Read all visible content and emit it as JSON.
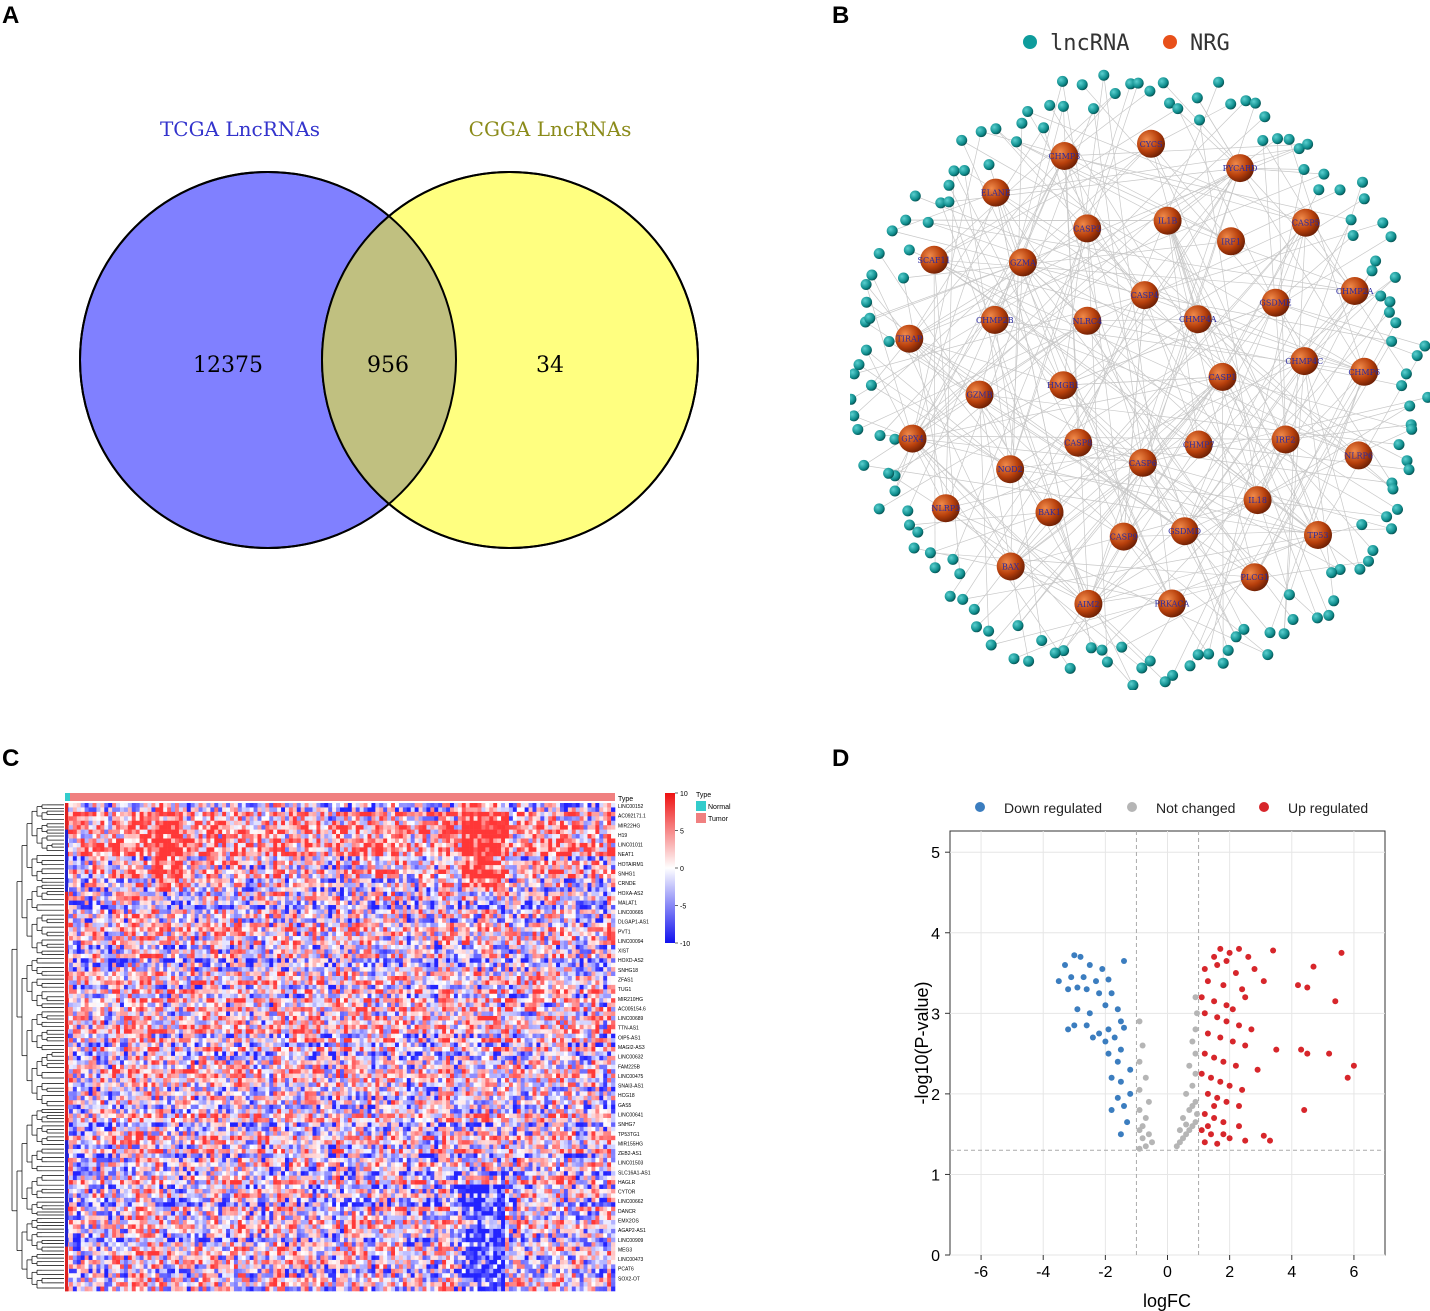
{
  "panels": {
    "a": "A",
    "b": "B",
    "c": "C",
    "d": "D"
  },
  "colors": {
    "tcga": "#8080ff",
    "cgga": "#ffff80",
    "overlap": "#c0c080",
    "lnc": "#0e9c9c",
    "nrg": "#c84c12",
    "down": "#3b7dbf",
    "notchanged": "#b5b5b5",
    "up": "#d7262b",
    "heat_low": "#2222dd",
    "heat_high": "#dd2222",
    "normal": "#33cccc",
    "tumor": "#f08080"
  },
  "chart_data": [
    {
      "type": "venn",
      "sets": [
        {
          "label": "TCGA LncRNAs",
          "only": "12375"
        },
        {
          "label": "CGGA LncRNAs",
          "only": "34"
        }
      ],
      "intersection": "956"
    },
    {
      "type": "network",
      "legend": [
        "lncRNA",
        "NRG"
      ],
      "nrg_nodes": [
        "CASP1",
        "CHMP7",
        "CASP6",
        "CASP8",
        "HMGB1",
        "NLRC4",
        "CASP4",
        "CHMP4A",
        "IRF2",
        "IL18",
        "GSDMD",
        "CASP9",
        "BAK1",
        "NOD2",
        "GZMB",
        "CHMP2B",
        "GZMA",
        "CASP3",
        "IL1B",
        "IRF1",
        "GSDME",
        "CHMP4C",
        "TP53",
        "PLCG1",
        "PRKACA",
        "AIM2",
        "BAX",
        "NLRP3",
        "GPX4",
        "TIRAP",
        "SCAF11",
        "ELANE",
        "CHMP3",
        "CYCS",
        "PYCARD",
        "CASP5",
        "CHMP2A",
        "CHMP6",
        "NLRP6"
      ]
    },
    {
      "type": "heatmap",
      "scale": {
        "ticks": [
          "10",
          "5",
          "0",
          "-5",
          "-10"
        ]
      },
      "legend_title": "Type",
      "legend_items": [
        "Normal",
        "Tumor"
      ],
      "column_annotation": "Type",
      "row_labels": [
        "LINC00152",
        "AC092171.1",
        "MIR22HG",
        "H19",
        "LINC01011",
        "NEAT1",
        "HOTAIRM1",
        "SNHG1",
        "CRNDE",
        "HOXA-AS2",
        "MALAT1",
        "LINC00665",
        "DLGAP1-AS1",
        "PVT1",
        "LINC00094",
        "XIST",
        "HOXD-AS2",
        "SNHG18",
        "ZFAS1",
        "TUG1",
        "MIR210HG",
        "AC005154.6",
        "LINC00689",
        "TTN-AS1",
        "OIP5-AS1",
        "MAGI2-AS3",
        "LINC00632",
        "FAM225B",
        "LINC00475",
        "SNAI3-AS1",
        "HCG18",
        "GAS5",
        "LINC00641",
        "SNHG7",
        "TP53TG1",
        "MIR155HG",
        "ZEB2-AS1",
        "LINC01503",
        "SLC16A1-AS1",
        "HAGLR",
        "CYTOR",
        "LINC00662",
        "DANCR",
        "EMX2OS",
        "AGAP2-AS1",
        "LINC00909",
        "MEG3",
        "LINC00473",
        "PCAT6",
        "SOX2-OT"
      ]
    },
    {
      "type": "scatter",
      "title": "",
      "xlabel": "logFC",
      "ylabel": "-log10(P-value)",
      "xlim": [
        -7,
        7
      ],
      "ylim": [
        0,
        5
      ],
      "xticks": [
        -6,
        -4,
        -2,
        0,
        2,
        4,
        6
      ],
      "yticks": [
        0,
        1,
        2,
        3,
        4,
        5
      ],
      "thresholds": {
        "logFC": [
          -1,
          1
        ],
        "p": 1.3
      },
      "legend": [
        "Down regulated",
        "Not changed",
        "Up regulated"
      ],
      "series": [
        {
          "name": "Down regulated",
          "points": [
            [
              -3.0,
              3.72
            ],
            [
              -2.8,
              3.7
            ],
            [
              -3.3,
              3.6
            ],
            [
              -2.5,
              3.6
            ],
            [
              -2.1,
              3.55
            ],
            [
              -3.5,
              3.4
            ],
            [
              -3.1,
              3.45
            ],
            [
              -2.7,
              3.45
            ],
            [
              -2.3,
              3.4
            ],
            [
              -1.9,
              3.42
            ],
            [
              -1.4,
              3.65
            ],
            [
              -3.2,
              3.3
            ],
            [
              -2.9,
              3.32
            ],
            [
              -2.6,
              3.3
            ],
            [
              -2.2,
              3.25
            ],
            [
              -1.8,
              3.25
            ],
            [
              -2.9,
              3.05
            ],
            [
              -2.5,
              3.0
            ],
            [
              -2.0,
              3.1
            ],
            [
              -1.6,
              3.05
            ],
            [
              -1.5,
              2.9
            ],
            [
              -1.4,
              2.82
            ],
            [
              -3.0,
              2.85
            ],
            [
              -2.6,
              2.85
            ],
            [
              -2.2,
              2.75
            ],
            [
              -1.9,
              2.8
            ],
            [
              -1.7,
              2.7
            ],
            [
              -3.2,
              2.8
            ],
            [
              -2.4,
              2.7
            ],
            [
              -2.0,
              2.65
            ],
            [
              -1.5,
              2.55
            ],
            [
              -1.9,
              2.5
            ],
            [
              -1.6,
              2.4
            ],
            [
              -1.2,
              2.3
            ],
            [
              -1.8,
              2.2
            ],
            [
              -1.5,
              2.15
            ],
            [
              -1.2,
              2.0
            ],
            [
              -1.6,
              1.95
            ],
            [
              -1.8,
              1.8
            ],
            [
              -1.4,
              1.85
            ],
            [
              -1.3,
              1.65
            ],
            [
              -1.5,
              1.5
            ]
          ]
        },
        {
          "name": "Not changed",
          "points": [
            [
              -0.9,
              2.9
            ],
            [
              -0.8,
              2.6
            ],
            [
              -0.9,
              2.4
            ],
            [
              -0.7,
              2.2
            ],
            [
              -0.9,
              2.05
            ],
            [
              -0.6,
              1.9
            ],
            [
              -0.9,
              1.8
            ],
            [
              -0.7,
              1.7
            ],
            [
              -0.8,
              1.6
            ],
            [
              -0.9,
              1.55
            ],
            [
              -0.6,
              1.5
            ],
            [
              -0.8,
              1.45
            ],
            [
              -0.5,
              1.4
            ],
            [
              -0.7,
              1.35
            ],
            [
              -0.9,
              1.32
            ],
            [
              0.3,
              1.35
            ],
            [
              0.4,
              1.4
            ],
            [
              0.5,
              1.45
            ],
            [
              0.6,
              1.5
            ],
            [
              0.7,
              1.55
            ],
            [
              0.8,
              1.6
            ],
            [
              0.9,
              1.65
            ],
            [
              0.5,
              1.7
            ],
            [
              0.7,
              1.8
            ],
            [
              0.9,
              1.9
            ],
            [
              0.6,
              2.0
            ],
            [
              0.8,
              2.1
            ],
            [
              0.9,
              2.25
            ],
            [
              0.7,
              2.35
            ],
            [
              0.9,
              2.5
            ],
            [
              0.8,
              2.65
            ],
            [
              0.9,
              2.8
            ],
            [
              0.95,
              3.0
            ],
            [
              0.9,
              3.2
            ],
            [
              0.4,
              1.55
            ],
            [
              0.6,
              1.62
            ],
            [
              0.8,
              1.85
            ],
            [
              0.95,
              1.75
            ]
          ]
        },
        {
          "name": "Up regulated",
          "points": [
            [
              1.7,
              3.8
            ],
            [
              2.0,
              3.75
            ],
            [
              2.3,
              3.8
            ],
            [
              3.4,
              3.78
            ],
            [
              1.5,
              3.7
            ],
            [
              1.9,
              3.65
            ],
            [
              2.6,
              3.7
            ],
            [
              4.7,
              3.58
            ],
            [
              5.6,
              3.75
            ],
            [
              1.2,
              3.55
            ],
            [
              1.6,
              3.6
            ],
            [
              2.2,
              3.5
            ],
            [
              2.8,
              3.55
            ],
            [
              3.1,
              3.4
            ],
            [
              1.3,
              3.4
            ],
            [
              1.8,
              3.35
            ],
            [
              2.4,
              3.3
            ],
            [
              4.2,
              3.35
            ],
            [
              4.5,
              3.32
            ],
            [
              1.1,
              3.2
            ],
            [
              1.5,
              3.15
            ],
            [
              1.9,
              3.1
            ],
            [
              2.1,
              3.05
            ],
            [
              2.5,
              3.2
            ],
            [
              5.4,
              3.15
            ],
            [
              1.2,
              3.0
            ],
            [
              1.6,
              2.95
            ],
            [
              1.9,
              2.9
            ],
            [
              2.3,
              2.85
            ],
            [
              2.7,
              2.8
            ],
            [
              1.3,
              2.75
            ],
            [
              1.7,
              2.7
            ],
            [
              2.1,
              2.65
            ],
            [
              2.5,
              2.6
            ],
            [
              3.5,
              2.55
            ],
            [
              4.3,
              2.55
            ],
            [
              4.5,
              2.5
            ],
            [
              5.2,
              2.5
            ],
            [
              1.2,
              2.5
            ],
            [
              1.5,
              2.45
            ],
            [
              1.8,
              2.4
            ],
            [
              2.2,
              2.35
            ],
            [
              2.9,
              2.3
            ],
            [
              6.0,
              2.35
            ],
            [
              1.1,
              2.25
            ],
            [
              1.4,
              2.2
            ],
            [
              1.7,
              2.15
            ],
            [
              2.0,
              2.1
            ],
            [
              2.4,
              2.05
            ],
            [
              5.8,
              2.2
            ],
            [
              1.3,
              2.0
            ],
            [
              1.6,
              1.95
            ],
            [
              1.9,
              1.9
            ],
            [
              2.3,
              1.85
            ],
            [
              4.4,
              1.8
            ],
            [
              1.2,
              1.75
            ],
            [
              1.5,
              1.7
            ],
            [
              1.8,
              1.65
            ],
            [
              2.3,
              1.6
            ],
            [
              1.1,
              1.55
            ],
            [
              1.4,
              1.5
            ],
            [
              2.0,
              1.45
            ],
            [
              3.1,
              1.48
            ],
            [
              3.3,
              1.42
            ],
            [
              1.2,
              1.4
            ],
            [
              1.6,
              1.38
            ],
            [
              2.5,
              1.42
            ],
            [
              1.8,
              1.5
            ],
            [
              1.3,
              1.6
            ],
            [
              1.5,
              1.85
            ]
          ]
        }
      ]
    }
  ]
}
